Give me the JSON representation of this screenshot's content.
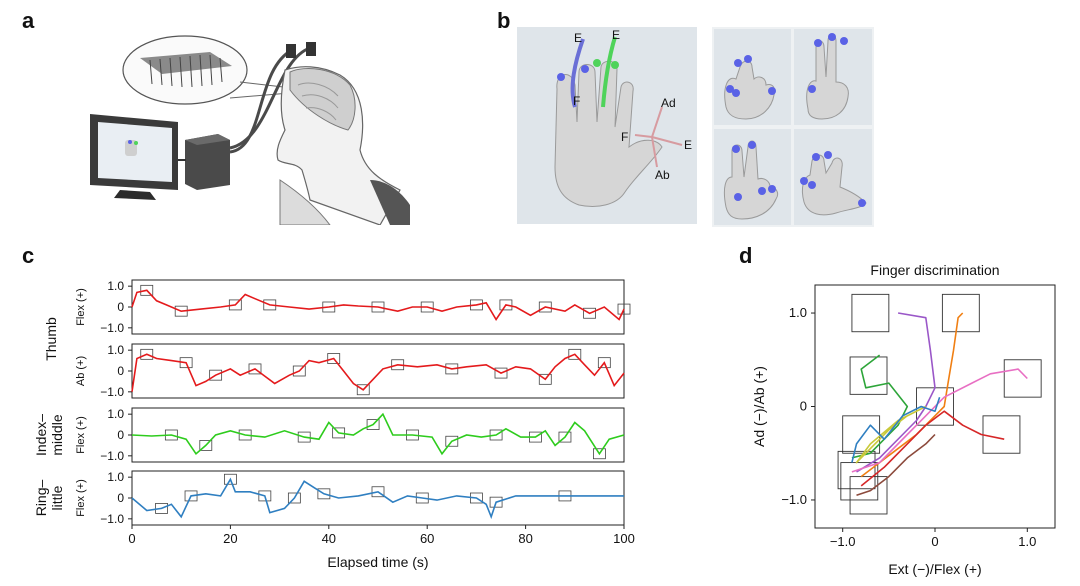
{
  "panels": {
    "a": "a",
    "b": "b",
    "c": "c",
    "d": "d"
  },
  "panel_b": {
    "hand_labels": {
      "e1": "E",
      "f1": "F",
      "e2": "E",
      "ad": "Ad",
      "f3": "F",
      "e3": "E",
      "ab": "Ab"
    },
    "colors": {
      "purple_finger": "#6a6fd6",
      "green_finger": "#4fd35a",
      "thumb_axes": "#d79ba0",
      "markers": "#5a62e6"
    }
  },
  "panel_c": {
    "row_groups": [
      "Thumb",
      "Index–\nmiddle",
      "Ring–\nlittle"
    ],
    "row_group_lines": [
      [
        "Thumb"
      ],
      [
        "Index–",
        "middle"
      ],
      [
        "Ring–",
        "little"
      ]
    ],
    "row_ylabels": [
      "Flex (+)",
      "Ab (+)",
      "Flex (+)",
      "Flex (+)"
    ],
    "yticks": [
      "1.0",
      "0",
      "−1.0"
    ],
    "xticks": [
      "0",
      "20",
      "40",
      "60",
      "80",
      "100"
    ],
    "xlabel": "Elapsed time (s)",
    "colors": [
      "#e41a1c",
      "#e41a1c",
      "#2ecc1d",
      "#2f7fc1"
    ]
  },
  "chart_data": [
    {
      "type": "line",
      "title": "",
      "xlabel": "Elapsed time (s)",
      "xlim": [
        0,
        100
      ],
      "ylim": [
        -1.2,
        1.2
      ],
      "series": [
        {
          "name": "Thumb Flex (+)",
          "color": "#e41a1c",
          "points": [
            [
              0,
              0
            ],
            [
              1,
              0.7
            ],
            [
              3,
              0.8
            ],
            [
              5,
              0.3
            ],
            [
              7,
              0.1
            ],
            [
              10,
              -0.2
            ],
            [
              14,
              -0.1
            ],
            [
              18,
              0
            ],
            [
              21,
              0.1
            ],
            [
              23,
              0.6
            ],
            [
              25,
              0.4
            ],
            [
              28,
              0.1
            ],
            [
              32,
              0
            ],
            [
              36,
              -0.1
            ],
            [
              40,
              0
            ],
            [
              43,
              0.1
            ],
            [
              46,
              0.05
            ],
            [
              50,
              0
            ],
            [
              54,
              -0.2
            ],
            [
              57,
              0
            ],
            [
              60,
              0
            ],
            [
              63,
              -0.2
            ],
            [
              66,
              0
            ],
            [
              70,
              0.1
            ],
            [
              72,
              0.2
            ],
            [
              74,
              -0.6
            ],
            [
              76,
              0.1
            ],
            [
              78,
              0
            ],
            [
              81,
              -0.4
            ],
            [
              84,
              0
            ],
            [
              88,
              -0.2
            ],
            [
              90,
              0.1
            ],
            [
              93,
              -0.3
            ],
            [
              96,
              0
            ],
            [
              99,
              -0.6
            ],
            [
              100,
              -0.1
            ]
          ]
        },
        {
          "name": "Thumb Ab (+)",
          "color": "#e41a1c",
          "points": [
            [
              0,
              -1
            ],
            [
              1,
              0.6
            ],
            [
              3,
              0.8
            ],
            [
              5,
              0.6
            ],
            [
              8,
              0.5
            ],
            [
              11,
              0.4
            ],
            [
              13,
              -0.7
            ],
            [
              15,
              -0.5
            ],
            [
              17,
              -0.2
            ],
            [
              20,
              0.1
            ],
            [
              22,
              -0.2
            ],
            [
              25,
              0.1
            ],
            [
              29,
              -0.6
            ],
            [
              32,
              -0.2
            ],
            [
              34,
              0
            ],
            [
              36,
              0.5
            ],
            [
              38,
              0.4
            ],
            [
              41,
              0.6
            ],
            [
              43,
              0
            ],
            [
              45,
              -0.6
            ],
            [
              47,
              -0.9
            ],
            [
              49,
              -0.4
            ],
            [
              51,
              0.1
            ],
            [
              54,
              0.3
            ],
            [
              58,
              0.2
            ],
            [
              62,
              0.3
            ],
            [
              65,
              0.1
            ],
            [
              68,
              0.2
            ],
            [
              72,
              0.3
            ],
            [
              75,
              -0.1
            ],
            [
              78,
              0.2
            ],
            [
              81,
              0.1
            ],
            [
              84,
              -0.4
            ],
            [
              86,
              0.2
            ],
            [
              88,
              0.6
            ],
            [
              90,
              0.8
            ],
            [
              92,
              0.3
            ],
            [
              94,
              -0.2
            ],
            [
              96,
              0.4
            ],
            [
              98,
              -0.7
            ],
            [
              100,
              -0.1
            ]
          ]
        },
        {
          "name": "Index–middle Flex (+)",
          "color": "#2ecc1d",
          "points": [
            [
              0,
              0
            ],
            [
              4,
              -0.05
            ],
            [
              8,
              0
            ],
            [
              11,
              -0.2
            ],
            [
              13,
              -0.9
            ],
            [
              15,
              -0.5
            ],
            [
              17,
              0
            ],
            [
              20,
              0.2
            ],
            [
              23,
              0
            ],
            [
              27,
              -0.1
            ],
            [
              31,
              0.2
            ],
            [
              35,
              -0.1
            ],
            [
              38,
              -0.2
            ],
            [
              40,
              0.6
            ],
            [
              42,
              0.1
            ],
            [
              45,
              0
            ],
            [
              47,
              0.3
            ],
            [
              49,
              0.5
            ],
            [
              51,
              1.0
            ],
            [
              53,
              0
            ],
            [
              57,
              0
            ],
            [
              61,
              -0.1
            ],
            [
              63,
              -0.9
            ],
            [
              65,
              -0.3
            ],
            [
              68,
              0
            ],
            [
              71,
              -0.1
            ],
            [
              74,
              0
            ],
            [
              76,
              0.3
            ],
            [
              79,
              -0.1
            ],
            [
              82,
              -0.1
            ],
            [
              84,
              0.2
            ],
            [
              86,
              -0.5
            ],
            [
              88,
              -0.1
            ],
            [
              90,
              0.6
            ],
            [
              92,
              0.2
            ],
            [
              95,
              -0.9
            ],
            [
              97,
              -0.2
            ],
            [
              100,
              0
            ]
          ]
        },
        {
          "name": "Ring–little Flex (+)",
          "color": "#2f7fc1",
          "points": [
            [
              0,
              0
            ],
            [
              3,
              -0.6
            ],
            [
              6,
              -0.5
            ],
            [
              8,
              -0.3
            ],
            [
              10,
              -0.9
            ],
            [
              12,
              0.1
            ],
            [
              15,
              0.2
            ],
            [
              18,
              0.1
            ],
            [
              20,
              0.9
            ],
            [
              21,
              0.3
            ],
            [
              24,
              0.3
            ],
            [
              27,
              0.1
            ],
            [
              28,
              -0.7
            ],
            [
              31,
              -0.5
            ],
            [
              33,
              0
            ],
            [
              35,
              0.8
            ],
            [
              37,
              0.5
            ],
            [
              39,
              0.2
            ],
            [
              42,
              0
            ],
            [
              46,
              0.1
            ],
            [
              50,
              0.3
            ],
            [
              53,
              -0.2
            ],
            [
              56,
              0.1
            ],
            [
              59,
              0
            ],
            [
              62,
              -0.1
            ],
            [
              66,
              0.1
            ],
            [
              70,
              0
            ],
            [
              72,
              -0.3
            ],
            [
              73,
              -0.9
            ],
            [
              74,
              -0.2
            ],
            [
              78,
              0.1
            ],
            [
              84,
              0.1
            ],
            [
              88,
              0.1
            ],
            [
              94,
              0.1
            ],
            [
              100,
              0.1
            ]
          ]
        }
      ]
    },
    {
      "type": "line",
      "title": "Finger discrimination",
      "xlabel": "Ext (−)/Flex (+)",
      "ylabel": "Ad (−)/Ab (+)",
      "xlim": [
        -1.3,
        1.3
      ],
      "ylim": [
        -1.3,
        1.3
      ],
      "xticks": [
        "−1.0",
        "0",
        "1.0"
      ],
      "yticks": [
        "1.0",
        "0",
        "−1.0"
      ],
      "target_centers": [
        [
          -0.7,
          1.0
        ],
        [
          0.28,
          1.0
        ],
        [
          -0.72,
          0.33
        ],
        [
          0.95,
          0.3
        ],
        [
          -0.8,
          -0.3
        ],
        [
          0.0,
          0.0
        ],
        [
          0.72,
          -0.3
        ],
        [
          -0.85,
          -0.68
        ],
        [
          -0.82,
          -0.8
        ],
        [
          -0.72,
          -0.95
        ]
      ],
      "series": [
        {
          "name": "purple",
          "color": "#9a57c8",
          "points": [
            [
              -0.4,
              1.0
            ],
            [
              -0.1,
              0.95
            ],
            [
              -0.05,
              0.6
            ],
            [
              0.0,
              0.2
            ],
            [
              -0.1,
              0.0
            ],
            [
              -0.2,
              -0.15
            ],
            [
              -0.35,
              -0.3
            ],
            [
              -0.6,
              -0.55
            ],
            [
              -0.85,
              -0.7
            ]
          ]
        },
        {
          "name": "orange",
          "color": "#f07f13",
          "points": [
            [
              0.3,
              1.0
            ],
            [
              0.25,
              0.95
            ],
            [
              0.2,
              0.6
            ],
            [
              0.15,
              0.3
            ],
            [
              0.1,
              0.0
            ],
            [
              0.0,
              -0.1
            ],
            [
              -0.2,
              -0.3
            ],
            [
              -0.6,
              -0.6
            ],
            [
              -0.8,
              -0.75
            ]
          ]
        },
        {
          "name": "green",
          "color": "#2da539",
          "points": [
            [
              -0.6,
              0.55
            ],
            [
              -0.8,
              0.4
            ],
            [
              -0.75,
              0.2
            ],
            [
              -0.5,
              0.25
            ],
            [
              -0.3,
              0.0
            ],
            [
              -0.4,
              -0.2
            ],
            [
              -0.55,
              -0.35
            ],
            [
              -0.7,
              -0.5
            ],
            [
              -0.9,
              -0.55
            ]
          ]
        },
        {
          "name": "pink",
          "color": "#e86fc3",
          "points": [
            [
              1.0,
              0.3
            ],
            [
              0.9,
              0.4
            ],
            [
              0.6,
              0.35
            ],
            [
              0.4,
              0.25
            ],
            [
              0.1,
              0.1
            ],
            [
              -0.1,
              -0.1
            ],
            [
              -0.3,
              -0.3
            ],
            [
              -0.6,
              -0.6
            ],
            [
              -0.9,
              -0.7
            ]
          ]
        },
        {
          "name": "yellow",
          "color": "#c9c93a",
          "points": [
            [
              -0.1,
              0.0
            ],
            [
              -0.3,
              -0.1
            ],
            [
              -0.5,
              -0.25
            ],
            [
              -0.7,
              -0.45
            ],
            [
              -0.85,
              -0.6
            ],
            [
              -0.7,
              -0.4
            ],
            [
              -0.4,
              -0.15
            ],
            [
              -0.1,
              0.0
            ]
          ]
        },
        {
          "name": "red",
          "color": "#d62728",
          "points": [
            [
              0.75,
              -0.35
            ],
            [
              0.5,
              -0.3
            ],
            [
              0.3,
              -0.2
            ],
            [
              0.1,
              -0.05
            ],
            [
              -0.1,
              -0.2
            ],
            [
              -0.3,
              -0.4
            ],
            [
              -0.55,
              -0.65
            ],
            [
              -0.8,
              -0.85
            ]
          ]
        },
        {
          "name": "brown",
          "color": "#8c4a3c",
          "points": [
            [
              0.0,
              -0.3
            ],
            [
              -0.1,
              -0.4
            ],
            [
              -0.3,
              -0.55
            ],
            [
              -0.5,
              -0.75
            ],
            [
              -0.7,
              -0.9
            ],
            [
              -0.85,
              -0.95
            ]
          ]
        },
        {
          "name": "blue",
          "color": "#2f7fc1",
          "points": [
            [
              -0.9,
              -0.6
            ],
            [
              -0.85,
              -0.4
            ],
            [
              -0.7,
              -0.2
            ],
            [
              -0.55,
              -0.35
            ],
            [
              -0.35,
              -0.1
            ],
            [
              -0.15,
              0.0
            ],
            [
              0.0,
              -0.05
            ],
            [
              0.05,
              0.1
            ]
          ]
        }
      ]
    }
  ]
}
